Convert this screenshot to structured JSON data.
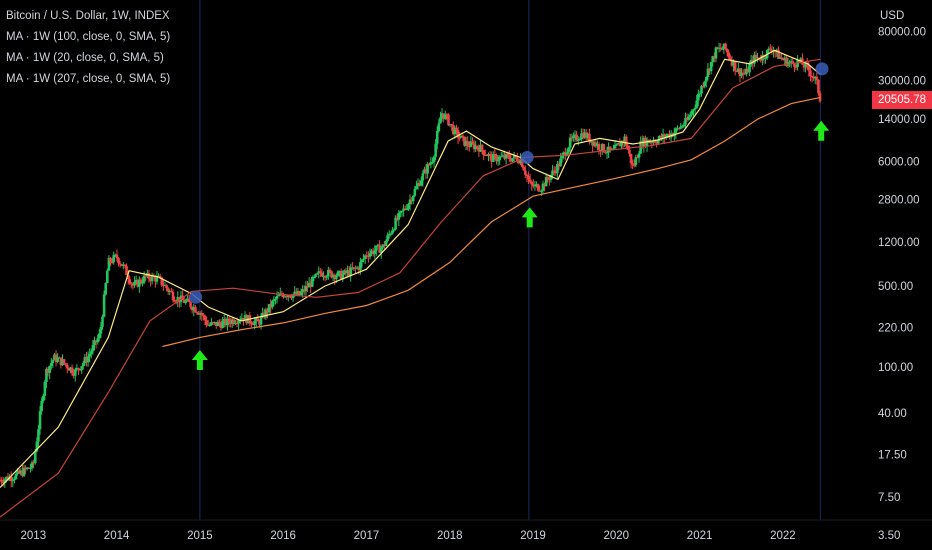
{
  "header": {
    "title": "Bitcoin / U.S. Dollar, 1W, INDEX",
    "indicators": [
      "MA · 1W (100, close, 0, SMA, 5)",
      "MA · 1W (20, close, 0, SMA, 5)",
      "MA · 1W (207, close, 0, SMA, 5)"
    ]
  },
  "price_axis": {
    "currency": "USD",
    "current_price": "20505.78",
    "current_price_color": "#f23645"
  },
  "colors": {
    "background": "#000000",
    "candle_up": "#22c55e",
    "candle_down": "#ef4444",
    "ma20": "#ffeb80",
    "ma100": "#c8443a",
    "ma207": "#f08a3c",
    "arrow": "#1fea18",
    "marker": "#3b5db8",
    "vline": "#1b2a66"
  },
  "icons": [
    "up-arrow-icon",
    "circle-marker-icon"
  ],
  "chart_data": {
    "type": "candlestick",
    "title": "Bitcoin / U.S. Dollar, 1W, INDEX",
    "y_scale": "log",
    "ylim": [
      3.5,
      150000
    ],
    "xlim": [
      2012.6,
      2022.95
    ],
    "x_tick_labels": [
      "2013",
      "2014",
      "2015",
      "2016",
      "2017",
      "2018",
      "2019",
      "2020",
      "2021",
      "2022"
    ],
    "y_tick_labels": [
      "80000.00",
      "30000.00",
      "14000.00",
      "6000.00",
      "2800.00",
      "1200.00",
      "500.00",
      "220.00",
      "100.00",
      "40.00",
      "17.50",
      "7.50",
      "3.50"
    ],
    "series": [
      {
        "name": "BTCUSD",
        "type": "candlestick",
        "x": [
          2012.6,
          2012.8,
          2013.0,
          2013.15,
          2013.25,
          2013.35,
          2013.5,
          2013.65,
          2013.8,
          2013.9,
          2014.0,
          2014.1,
          2014.2,
          2014.35,
          2014.5,
          2014.7,
          2014.85,
          2015.0,
          2015.1,
          2015.3,
          2015.5,
          2015.7,
          2015.9,
          2016.0,
          2016.2,
          2016.45,
          2016.7,
          2016.9,
          2017.0,
          2017.2,
          2017.35,
          2017.5,
          2017.65,
          2017.8,
          2017.9,
          2017.97,
          2018.05,
          2018.2,
          2018.35,
          2018.5,
          2018.7,
          2018.85,
          2018.97,
          2019.1,
          2019.3,
          2019.45,
          2019.6,
          2019.8,
          2019.95,
          2020.1,
          2020.2,
          2020.3,
          2020.5,
          2020.7,
          2020.85,
          2020.95,
          2021.05,
          2021.2,
          2021.3,
          2021.45,
          2021.55,
          2021.65,
          2021.75,
          2021.87,
          2021.97,
          2022.1,
          2022.2,
          2022.3,
          2022.4,
          2022.45
        ],
        "close": [
          10.5,
          11.5,
          14,
          90,
          120,
          110,
          90,
          120,
          190,
          800,
          900,
          700,
          500,
          600,
          580,
          400,
          360,
          300,
          230,
          240,
          270,
          240,
          380,
          430,
          420,
          660,
          620,
          720,
          950,
          1100,
          1800,
          2600,
          4200,
          6500,
          16000,
          14000,
          11000,
          8500,
          8000,
          6400,
          6500,
          6300,
          3700,
          3600,
          5500,
          9000,
          10500,
          8000,
          7200,
          9500,
          5300,
          8800,
          9300,
          10800,
          13500,
          19000,
          30000,
          55000,
          58000,
          37000,
          34000,
          47000,
          48000,
          58000,
          47000,
          42000,
          44000,
          38000,
          30000,
          20505.78
        ]
      },
      {
        "name": "MA 20",
        "x": [
          2012.6,
          2013.3,
          2013.9,
          2014.15,
          2014.5,
          2014.9,
          2015.1,
          2015.5,
          2016.0,
          2016.5,
          2017.0,
          2017.5,
          2017.98,
          2018.2,
          2018.5,
          2018.85,
          2019.0,
          2019.3,
          2019.5,
          2019.8,
          2020.2,
          2020.5,
          2020.8,
          2021.0,
          2021.3,
          2021.6,
          2021.9,
          2022.1,
          2022.3,
          2022.45
        ],
        "values": [
          9,
          30,
          180,
          680,
          600,
          430,
          330,
          250,
          300,
          500,
          700,
          1700,
          9000,
          11000,
          8000,
          6500,
          5200,
          4200,
          8500,
          9500,
          8500,
          9200,
          10800,
          17000,
          46000,
          42000,
          55000,
          48000,
          42000,
          34000
        ]
      },
      {
        "name": "MA 100",
        "x": [
          2012.6,
          2013.3,
          2013.9,
          2014.4,
          2014.9,
          2015.4,
          2015.9,
          2016.4,
          2016.9,
          2017.4,
          2017.9,
          2018.4,
          2018.9,
          2019.4,
          2019.9,
          2020.4,
          2020.9,
          2021.4,
          2021.9,
          2022.45
        ],
        "values": [
          5,
          12,
          60,
          250,
          450,
          480,
          430,
          400,
          440,
          650,
          1800,
          4500,
          6500,
          6800,
          7500,
          8200,
          9500,
          26000,
          40000,
          46000
        ]
      },
      {
        "name": "MA 207",
        "x": [
          2014.55,
          2015.0,
          2015.5,
          2016.0,
          2016.5,
          2017.0,
          2017.5,
          2018.0,
          2018.5,
          2019.0,
          2019.5,
          2020.0,
          2020.5,
          2020.9,
          2021.3,
          2021.7,
          2022.1,
          2022.45
        ],
        "values": [
          150,
          180,
          210,
          240,
          290,
          340,
          460,
          800,
          1800,
          3000,
          3600,
          4300,
          5200,
          6200,
          9000,
          14000,
          19000,
          21500
        ]
      }
    ],
    "annotations": [
      {
        "type": "vertical_line",
        "x": 2015.0
      },
      {
        "type": "vertical_line",
        "x": 2018.95
      },
      {
        "type": "vertical_line",
        "x": 2022.45
      },
      {
        "type": "circle_marker",
        "x": 2014.95,
        "y": 400
      },
      {
        "type": "circle_marker",
        "x": 2018.93,
        "y": 6500
      },
      {
        "type": "circle_marker",
        "x": 2022.47,
        "y": 38000
      },
      {
        "type": "up_arrow",
        "x": 2015.0,
        "y": 140
      },
      {
        "type": "up_arrow",
        "x": 2018.96,
        "y": 2400
      },
      {
        "type": "up_arrow",
        "x": 2022.46,
        "y": 13500
      }
    ]
  }
}
